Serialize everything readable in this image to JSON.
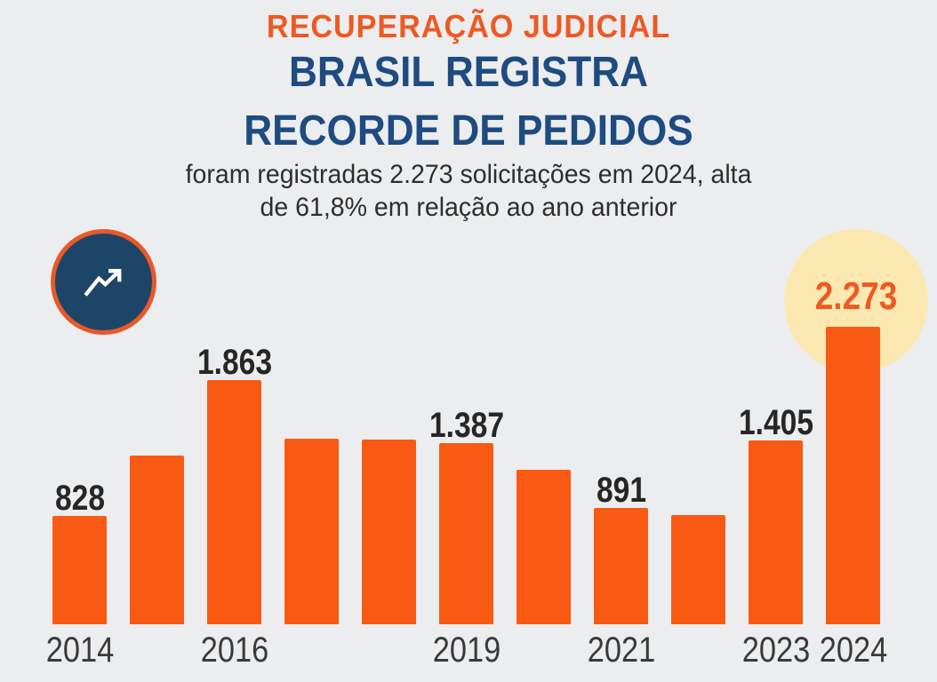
{
  "page": {
    "kicker": "RECUPERAÇÃO JUDICIAL",
    "title_line1": "BRASIL REGISTRA",
    "title_line2": "RECORDE DE PEDIDOS",
    "subtitle_line1": "foram registradas 2.273 solicitações em 2024, alta",
    "subtitle_line2": "de 61,8% em relação ao ano anterior"
  },
  "icons": {
    "trend_badge": "trending-up-icon"
  },
  "colors": {
    "background": "#ecedef",
    "bar_orange": "#f95a13",
    "title_orange": "#ee5a24",
    "dark_blue": "#1e4b80",
    "icon_fill": "#1d4568",
    "icon_border": "#e8592a",
    "icon_arrow": "#ffffff",
    "highlight_circle": "#fae8b0",
    "value_label": "#262626",
    "axis_label": "#3a3a3a",
    "subtitle_text": "#2e2e2e"
  },
  "chart_data": {
    "type": "bar",
    "title": "Pedidos de recuperação judicial no Brasil por ano",
    "categories": [
      "2014",
      "2015",
      "2016",
      "2017",
      "2018",
      "2019",
      "2020",
      "2021",
      "2022",
      "2023",
      "2024"
    ],
    "values": [
      828,
      1287,
      1863,
      1420,
      1408,
      1387,
      1179,
      891,
      833,
      1405,
      2273
    ],
    "value_labels": [
      "828",
      "",
      "1.863",
      "",
      "",
      "1.387",
      "",
      "891",
      "",
      "1.405",
      "2.273"
    ],
    "x_tick_labels": [
      "2014",
      "",
      "2016",
      "",
      "",
      "2019",
      "",
      "2021",
      "",
      "2023",
      "2024"
    ],
    "estimated_indices": [
      1,
      3,
      4,
      6,
      8
    ],
    "highlight_index": 10,
    "xlabel": "",
    "ylabel": "",
    "ylim": [
      0,
      2400
    ],
    "grid": false,
    "legend": false
  }
}
